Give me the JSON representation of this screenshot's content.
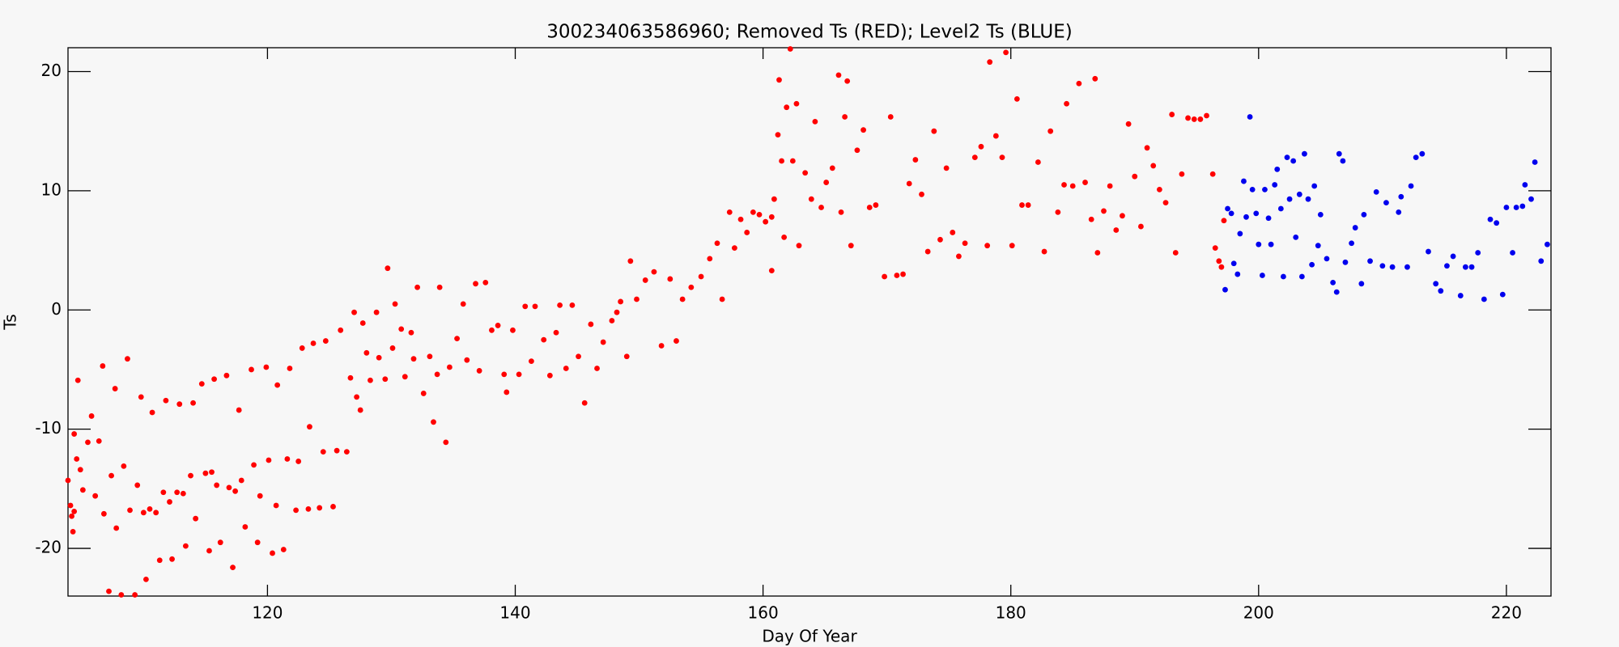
{
  "chart_data": {
    "type": "scatter",
    "title": "300234063586960; Removed Ts (RED); Level2 Ts (BLUE)",
    "x_label": "Day Of Year",
    "y_label": "Ts",
    "xlim": [
      103.9,
      223.6
    ],
    "ylim": [
      -24,
      22
    ],
    "xticks": [
      120,
      140,
      160,
      180,
      200,
      220
    ],
    "yticks": [
      -20,
      -10,
      0,
      10,
      20
    ],
    "grid": false,
    "series": [
      {
        "color": "#ff0000",
        "x": [
          103.9,
          104.1,
          104.2,
          104.3,
          104.4,
          104.4,
          104.6,
          104.7,
          104.9,
          105.1,
          105.5,
          105.8,
          106.1,
          106.4,
          106.7,
          106.8,
          107.2,
          107.4,
          107.7,
          107.8,
          108.2,
          108.4,
          108.7,
          108.9,
          109.3,
          109.5,
          109.8,
          110.0,
          110.2,
          110.5,
          110.7,
          111.0,
          111.3,
          111.6,
          111.8,
          112.1,
          112.3,
          112.7,
          112.9,
          113.2,
          113.4,
          113.8,
          114.0,
          114.2,
          114.7,
          115.0,
          115.3,
          115.5,
          115.7,
          115.9,
          116.2,
          116.7,
          116.9,
          117.2,
          117.4,
          117.7,
          117.9,
          118.2,
          118.7,
          118.9,
          119.2,
          119.4,
          119.9,
          120.1,
          120.4,
          120.7,
          120.8,
          121.3,
          121.6,
          121.8,
          122.3,
          122.5,
          122.8,
          123.3,
          123.4,
          123.7,
          124.2,
          124.5,
          124.7,
          125.3,
          125.6,
          125.9,
          126.4,
          126.7,
          127.0,
          127.2,
          127.5,
          127.7,
          128.0,
          128.3,
          128.8,
          129.0,
          129.5,
          129.7,
          130.1,
          130.3,
          130.8,
          131.1,
          131.6,
          131.8,
          132.1,
          132.6,
          133.1,
          133.4,
          133.7,
          133.9,
          134.4,
          134.7,
          135.3,
          135.8,
          136.1,
          136.8,
          137.1,
          137.6,
          138.1,
          138.6,
          139.1,
          139.3,
          139.8,
          140.3,
          140.8,
          141.3,
          141.6,
          142.3,
          142.8,
          143.3,
          143.6,
          144.1,
          144.6,
          145.1,
          145.6,
          146.1,
          146.6,
          147.1,
          147.8,
          148.2,
          148.5,
          149.0,
          149.3,
          149.8,
          150.5,
          151.2,
          151.8,
          152.5,
          153.0,
          153.5,
          154.2,
          155.0,
          155.7,
          156.3,
          156.7,
          157.3,
          157.7,
          158.2,
          158.7,
          159.2,
          159.7,
          160.2,
          160.7,
          160.7,
          160.9,
          161.2,
          161.3,
          161.5,
          161.7,
          161.9,
          162.2,
          162.4,
          162.7,
          162.9,
          163.4,
          163.9,
          164.2,
          164.7,
          165.1,
          165.6,
          166.1,
          166.3,
          166.6,
          166.8,
          167.1,
          167.6,
          168.1,
          168.6,
          169.1,
          169.8,
          170.3,
          170.8,
          171.3,
          171.8,
          172.3,
          172.8,
          173.3,
          173.8,
          174.3,
          174.8,
          175.3,
          175.8,
          176.3,
          177.1,
          177.6,
          178.1,
          178.3,
          178.8,
          179.3,
          179.6,
          180.1,
          180.5,
          180.9,
          181.4,
          182.2,
          182.7,
          183.2,
          183.8,
          184.3,
          184.5,
          185.0,
          185.5,
          186.0,
          186.5,
          186.8,
          187.0,
          187.5,
          188.0,
          188.5,
          189.0,
          189.5,
          190.0,
          190.5,
          191.0,
          191.5,
          192.0,
          192.5,
          193.0,
          193.3,
          193.8,
          194.3,
          194.8,
          195.3,
          195.8,
          196.3,
          196.5,
          196.8,
          197.0,
          197.2
        ],
        "values": [
          -14.3,
          -16.4,
          -17.3,
          -18.6,
          -16.9,
          -10.4,
          -12.5,
          -5.9,
          -13.4,
          -15.1,
          -11.1,
          -8.9,
          -15.6,
          -11.0,
          -4.7,
          -17.1,
          -23.6,
          -13.9,
          -6.6,
          -18.3,
          -23.9,
          -13.1,
          -4.1,
          -16.8,
          -23.9,
          -14.7,
          -7.3,
          -17.0,
          -22.6,
          -16.7,
          -8.6,
          -17.0,
          -21.0,
          -15.3,
          -7.6,
          -16.1,
          -20.9,
          -15.3,
          -7.9,
          -15.4,
          -19.8,
          -13.9,
          -7.8,
          -17.5,
          -6.2,
          -13.7,
          -20.2,
          -13.6,
          -5.8,
          -14.7,
          -19.5,
          -5.5,
          -14.9,
          -21.6,
          -15.2,
          -8.4,
          -14.3,
          -18.2,
          -5.0,
          -13.0,
          -19.5,
          -15.6,
          -4.8,
          -12.6,
          -20.4,
          -16.4,
          -6.3,
          -20.1,
          -12.5,
          -4.9,
          -16.8,
          -12.7,
          -3.2,
          -16.7,
          -9.8,
          -2.8,
          -16.6,
          -11.9,
          -2.6,
          -16.5,
          -11.8,
          -1.7,
          -11.9,
          -5.7,
          -0.2,
          -7.3,
          -8.4,
          -1.1,
          -3.6,
          -5.9,
          -0.2,
          -4.0,
          -5.8,
          3.5,
          -3.2,
          0.5,
          -1.6,
          -5.6,
          -1.9,
          -4.1,
          1.9,
          -7.0,
          -3.9,
          -9.4,
          -5.4,
          1.9,
          -11.1,
          -4.8,
          -2.4,
          0.5,
          -4.2,
          2.2,
          -5.1,
          2.3,
          -1.7,
          -1.3,
          -5.4,
          -6.9,
          -1.7,
          -5.4,
          0.3,
          -4.3,
          0.3,
          -2.5,
          -5.5,
          -1.9,
          0.4,
          -4.9,
          0.4,
          -3.9,
          -7.8,
          -1.2,
          -4.9,
          -2.7,
          -0.9,
          -0.2,
          0.7,
          -3.9,
          4.1,
          0.9,
          2.5,
          3.2,
          -3.0,
          2.6,
          -2.6,
          0.9,
          1.9,
          2.8,
          4.3,
          5.6,
          0.9,
          8.2,
          5.2,
          7.6,
          6.5,
          8.2,
          8.0,
          7.4,
          7.8,
          3.3,
          9.3,
          14.7,
          19.3,
          12.5,
          6.1,
          17.0,
          21.9,
          12.5,
          17.3,
          5.4,
          11.5,
          9.3,
          15.8,
          8.6,
          10.7,
          11.9,
          19.7,
          8.2,
          16.2,
          19.2,
          5.4,
          13.4,
          15.1,
          8.6,
          8.8,
          2.8,
          16.2,
          2.9,
          3.0,
          10.6,
          12.6,
          9.7,
          4.9,
          15.0,
          5.9,
          11.9,
          6.5,
          4.5,
          5.6,
          12.8,
          13.7,
          5.4,
          20.8,
          14.6,
          12.8,
          21.6,
          5.4,
          17.7,
          8.8,
          8.8,
          12.4,
          4.9,
          15.0,
          8.2,
          10.5,
          17.3,
          10.4,
          19.0,
          10.7,
          7.6,
          19.4,
          4.8,
          8.3,
          10.4,
          6.7,
          7.9,
          15.6,
          11.2,
          7.0,
          13.6,
          12.1,
          10.1,
          9.0,
          16.4,
          4.8,
          11.4,
          16.1,
          16.0,
          16.0,
          16.3,
          11.4,
          5.2,
          4.1,
          3.6,
          7.5
        ]
      },
      {
        "color": "#0000ee",
        "x": [
          197.3,
          197.5,
          197.8,
          198.0,
          198.3,
          198.5,
          198.8,
          199.0,
          199.3,
          199.5,
          199.8,
          200.0,
          200.3,
          200.5,
          200.8,
          201.0,
          201.3,
          201.5,
          201.8,
          202.0,
          202.3,
          202.5,
          202.8,
          203.0,
          203.3,
          203.5,
          203.7,
          204.0,
          204.3,
          204.5,
          204.8,
          205.0,
          205.5,
          206.0,
          206.3,
          206.5,
          206.8,
          207.0,
          207.5,
          207.8,
          208.3,
          208.5,
          209.0,
          209.5,
          210.0,
          210.3,
          210.8,
          211.3,
          211.5,
          212.0,
          212.3,
          212.7,
          213.2,
          213.7,
          214.3,
          214.7,
          215.2,
          215.7,
          216.3,
          216.7,
          217.2,
          217.7,
          218.2,
          218.7,
          219.2,
          219.7,
          220.0,
          220.5,
          220.8,
          221.3,
          221.5,
          222.0,
          222.3,
          222.8,
          223.3
        ],
        "values": [
          1.7,
          8.5,
          8.1,
          3.9,
          3.0,
          6.4,
          10.8,
          7.8,
          16.2,
          10.1,
          8.1,
          5.5,
          2.9,
          10.1,
          7.7,
          5.5,
          10.5,
          11.8,
          8.5,
          2.8,
          12.8,
          9.3,
          12.5,
          6.1,
          9.7,
          2.8,
          13.1,
          9.3,
          3.8,
          10.4,
          5.4,
          8.0,
          4.3,
          2.3,
          1.5,
          13.1,
          12.5,
          4.0,
          5.6,
          6.9,
          2.2,
          8.0,
          4.1,
          9.9,
          3.7,
          9.0,
          3.6,
          8.2,
          9.5,
          3.6,
          10.4,
          12.8,
          13.1,
          4.9,
          2.2,
          1.6,
          3.7,
          4.5,
          1.2,
          3.6,
          3.6,
          4.8,
          0.9,
          7.6,
          7.3,
          1.3,
          8.6,
          4.8,
          8.6,
          8.7,
          10.5,
          9.3,
          12.4,
          4.1,
          5.5
        ]
      }
    ]
  }
}
